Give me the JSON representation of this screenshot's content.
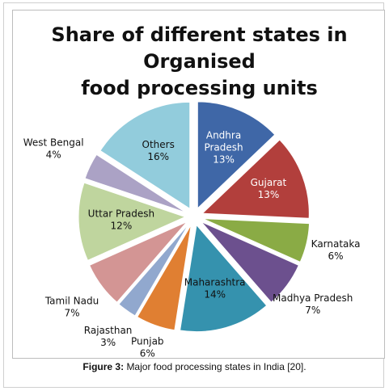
{
  "caption": {
    "label": "Figure 3:",
    "text": "Major food processing states in India [20]."
  },
  "chart_data": {
    "type": "pie",
    "title": "Share of different states in Organised\nfood processing units",
    "slices": [
      {
        "name": "Andhra Pradesh",
        "value": 13,
        "label": "13%",
        "color": "#3F67A7",
        "text_color": "#ffffff"
      },
      {
        "name": "Gujarat",
        "value": 13,
        "label": "13%",
        "color": "#B23F3C",
        "text_color": "#ffffff"
      },
      {
        "name": "Karnataka",
        "value": 6,
        "label": "6%",
        "color": "#8AAB45",
        "text_color": "#111111"
      },
      {
        "name": "Madhya Pradesh",
        "value": 7,
        "label": "7%",
        "color": "#6C508E",
        "text_color": "#111111"
      },
      {
        "name": "Maharashtra",
        "value": 14,
        "label": "14%",
        "color": "#3592AE",
        "text_color": "#111111"
      },
      {
        "name": "Punjab",
        "value": 6,
        "label": "6%",
        "color": "#E07F32",
        "text_color": "#111111"
      },
      {
        "name": "Rajasthan",
        "value": 3,
        "label": "3%",
        "color": "#91A8CE",
        "text_color": "#111111"
      },
      {
        "name": "Tamil Nadu",
        "value": 7,
        "label": "7%",
        "color": "#D39594",
        "text_color": "#111111"
      },
      {
        "name": "Uttar Pradesh",
        "value": 12,
        "label": "12%",
        "color": "#BFD59E",
        "text_color": "#111111"
      },
      {
        "name": "West Bengal",
        "value": 4,
        "label": "4%",
        "color": "#ABA2C5",
        "text_color": "#111111"
      },
      {
        "name": "Others",
        "value": 16,
        "label": "16%",
        "color": "#92CCDC",
        "text_color": "#111111"
      }
    ]
  }
}
